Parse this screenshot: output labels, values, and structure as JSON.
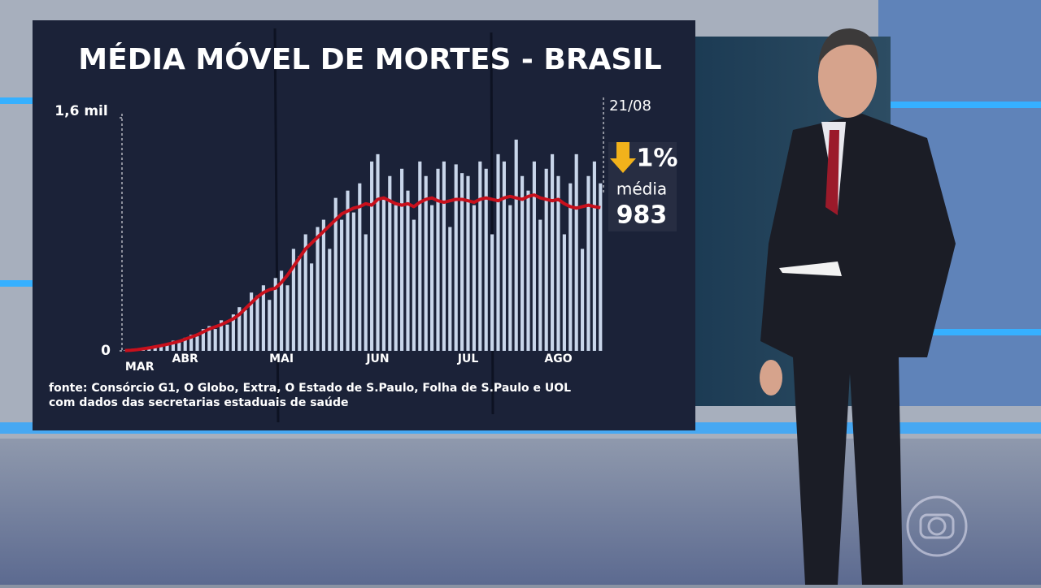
{
  "chart_data": {
    "type": "bar",
    "title": "MÉDIA MÓVEL DE MORTES - BRASIL",
    "categories": [
      "MAR",
      null,
      null,
      null,
      null,
      null,
      null,
      null,
      null,
      null,
      "ABR",
      null,
      null,
      null,
      null,
      null,
      null,
      null,
      null,
      null,
      null,
      null,
      null,
      null,
      null,
      null,
      "MAI",
      null,
      null,
      null,
      null,
      null,
      null,
      null,
      null,
      null,
      null,
      null,
      null,
      null,
      null,
      null,
      "JUN",
      null,
      null,
      null,
      null,
      null,
      null,
      null,
      null,
      null,
      null,
      null,
      null,
      null,
      null,
      "JUL",
      null,
      null,
      null,
      null,
      null,
      null,
      null,
      null,
      null,
      null,
      null,
      null,
      null,
      null,
      "AGO",
      null,
      null,
      null,
      null,
      null,
      null,
      null
    ],
    "series": [
      {
        "type": "bar",
        "color": "#c9d6ea",
        "values": [
          3,
          5,
          10,
          15,
          25,
          30,
          40,
          50,
          70,
          70,
          90,
          110,
          100,
          150,
          170,
          150,
          210,
          180,
          250,
          300,
          280,
          400,
          380,
          450,
          350,
          500,
          550,
          450,
          700,
          650,
          800,
          600,
          850,
          900,
          700,
          1050,
          900,
          1100,
          950,
          1150,
          800,
          1300,
          1350,
          1050,
          1200,
          1000,
          1250,
          1100,
          900,
          1300,
          1200,
          1000,
          1250,
          1300,
          850,
          1280,
          1220,
          1200,
          1000,
          1300,
          1250,
          800,
          1350,
          1300,
          1000,
          1450,
          1200,
          1100,
          1300,
          900,
          1250,
          1350,
          1200,
          800,
          1150,
          1350,
          700,
          1200,
          1300,
          1150
        ]
      },
      {
        "type": "line",
        "color": "#c8101c",
        "values": [
          2,
          4,
          8,
          14,
          20,
          28,
          36,
          45,
          55,
          65,
          80,
          95,
          110,
          130,
          150,
          165,
          180,
          200,
          220,
          250,
          290,
          330,
          370,
          400,
          420,
          430,
          470,
          520,
          580,
          640,
          700,
          740,
          780,
          820,
          860,
          900,
          940,
          960,
          980,
          990,
          1010,
          1000,
          1040,
          1050,
          1030,
          1010,
          1000,
          1010,
          990,
          1020,
          1040,
          1050,
          1030,
          1020,
          1030,
          1040,
          1040,
          1030,
          1020,
          1040,
          1050,
          1040,
          1030,
          1050,
          1060,
          1050,
          1040,
          1060,
          1070,
          1050,
          1040,
          1030,
          1040,
          1010,
          990,
          980,
          990,
          1000,
          990,
          983
        ]
      }
    ],
    "ylim": [
      0,
      1600
    ],
    "yticks": [
      0,
      {
        "value": 1600,
        "label": "1,6 mil"
      }
    ],
    "annotations": {
      "date": "21/08",
      "change": "1%",
      "average_label": "média"
    },
    "source": [
      "fonte: Consórcio G1, O Globo, Extra, O Estado de S.Paulo, Folha de S.Paulo e UOL",
      "com dados das secretarias estaduais de saúde"
    ]
  }
}
